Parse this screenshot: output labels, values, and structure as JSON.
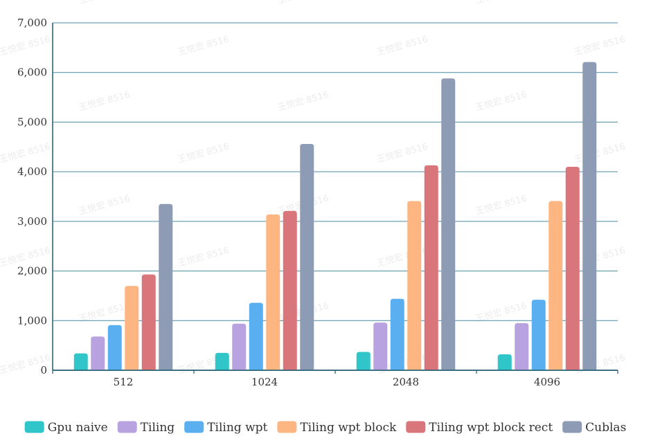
{
  "chart_data": {
    "type": "bar",
    "categories": [
      "512",
      "1024",
      "2048",
      "4096"
    ],
    "series": [
      {
        "name": "Gpu naive",
        "values": [
          340,
          350,
          370,
          320
        ],
        "color": "#30c6c9"
      },
      {
        "name": "Tiling",
        "values": [
          680,
          940,
          960,
          950
        ],
        "color": "#b8a3e0"
      },
      {
        "name": "Tiling wpt",
        "values": [
          910,
          1360,
          1440,
          1420
        ],
        "color": "#5aaff0"
      },
      {
        "name": "Tiling wpt block",
        "values": [
          1700,
          3140,
          3410,
          3410
        ],
        "color": "#fdb682"
      },
      {
        "name": "Tiling wpt block rect",
        "values": [
          1930,
          3210,
          4130,
          4100
        ],
        "color": "#d9767c"
      },
      {
        "name": "Cublas",
        "values": [
          3350,
          4560,
          5880,
          6210
        ],
        "color": "#8e9bb4"
      }
    ],
    "ylim": [
      0,
      7000
    ],
    "yticks": [
      "0",
      "1,000",
      "2,000",
      "3,000",
      "4,000",
      "5,000",
      "6,000",
      "7,000"
    ],
    "grid": true,
    "legend_position": "bottom",
    "title": "",
    "xlabel": "",
    "ylabel": ""
  },
  "watermark_text": "王悦宏 8516",
  "colors": {
    "gridline": "#4a8aa0",
    "axis": "#1f5f72"
  }
}
